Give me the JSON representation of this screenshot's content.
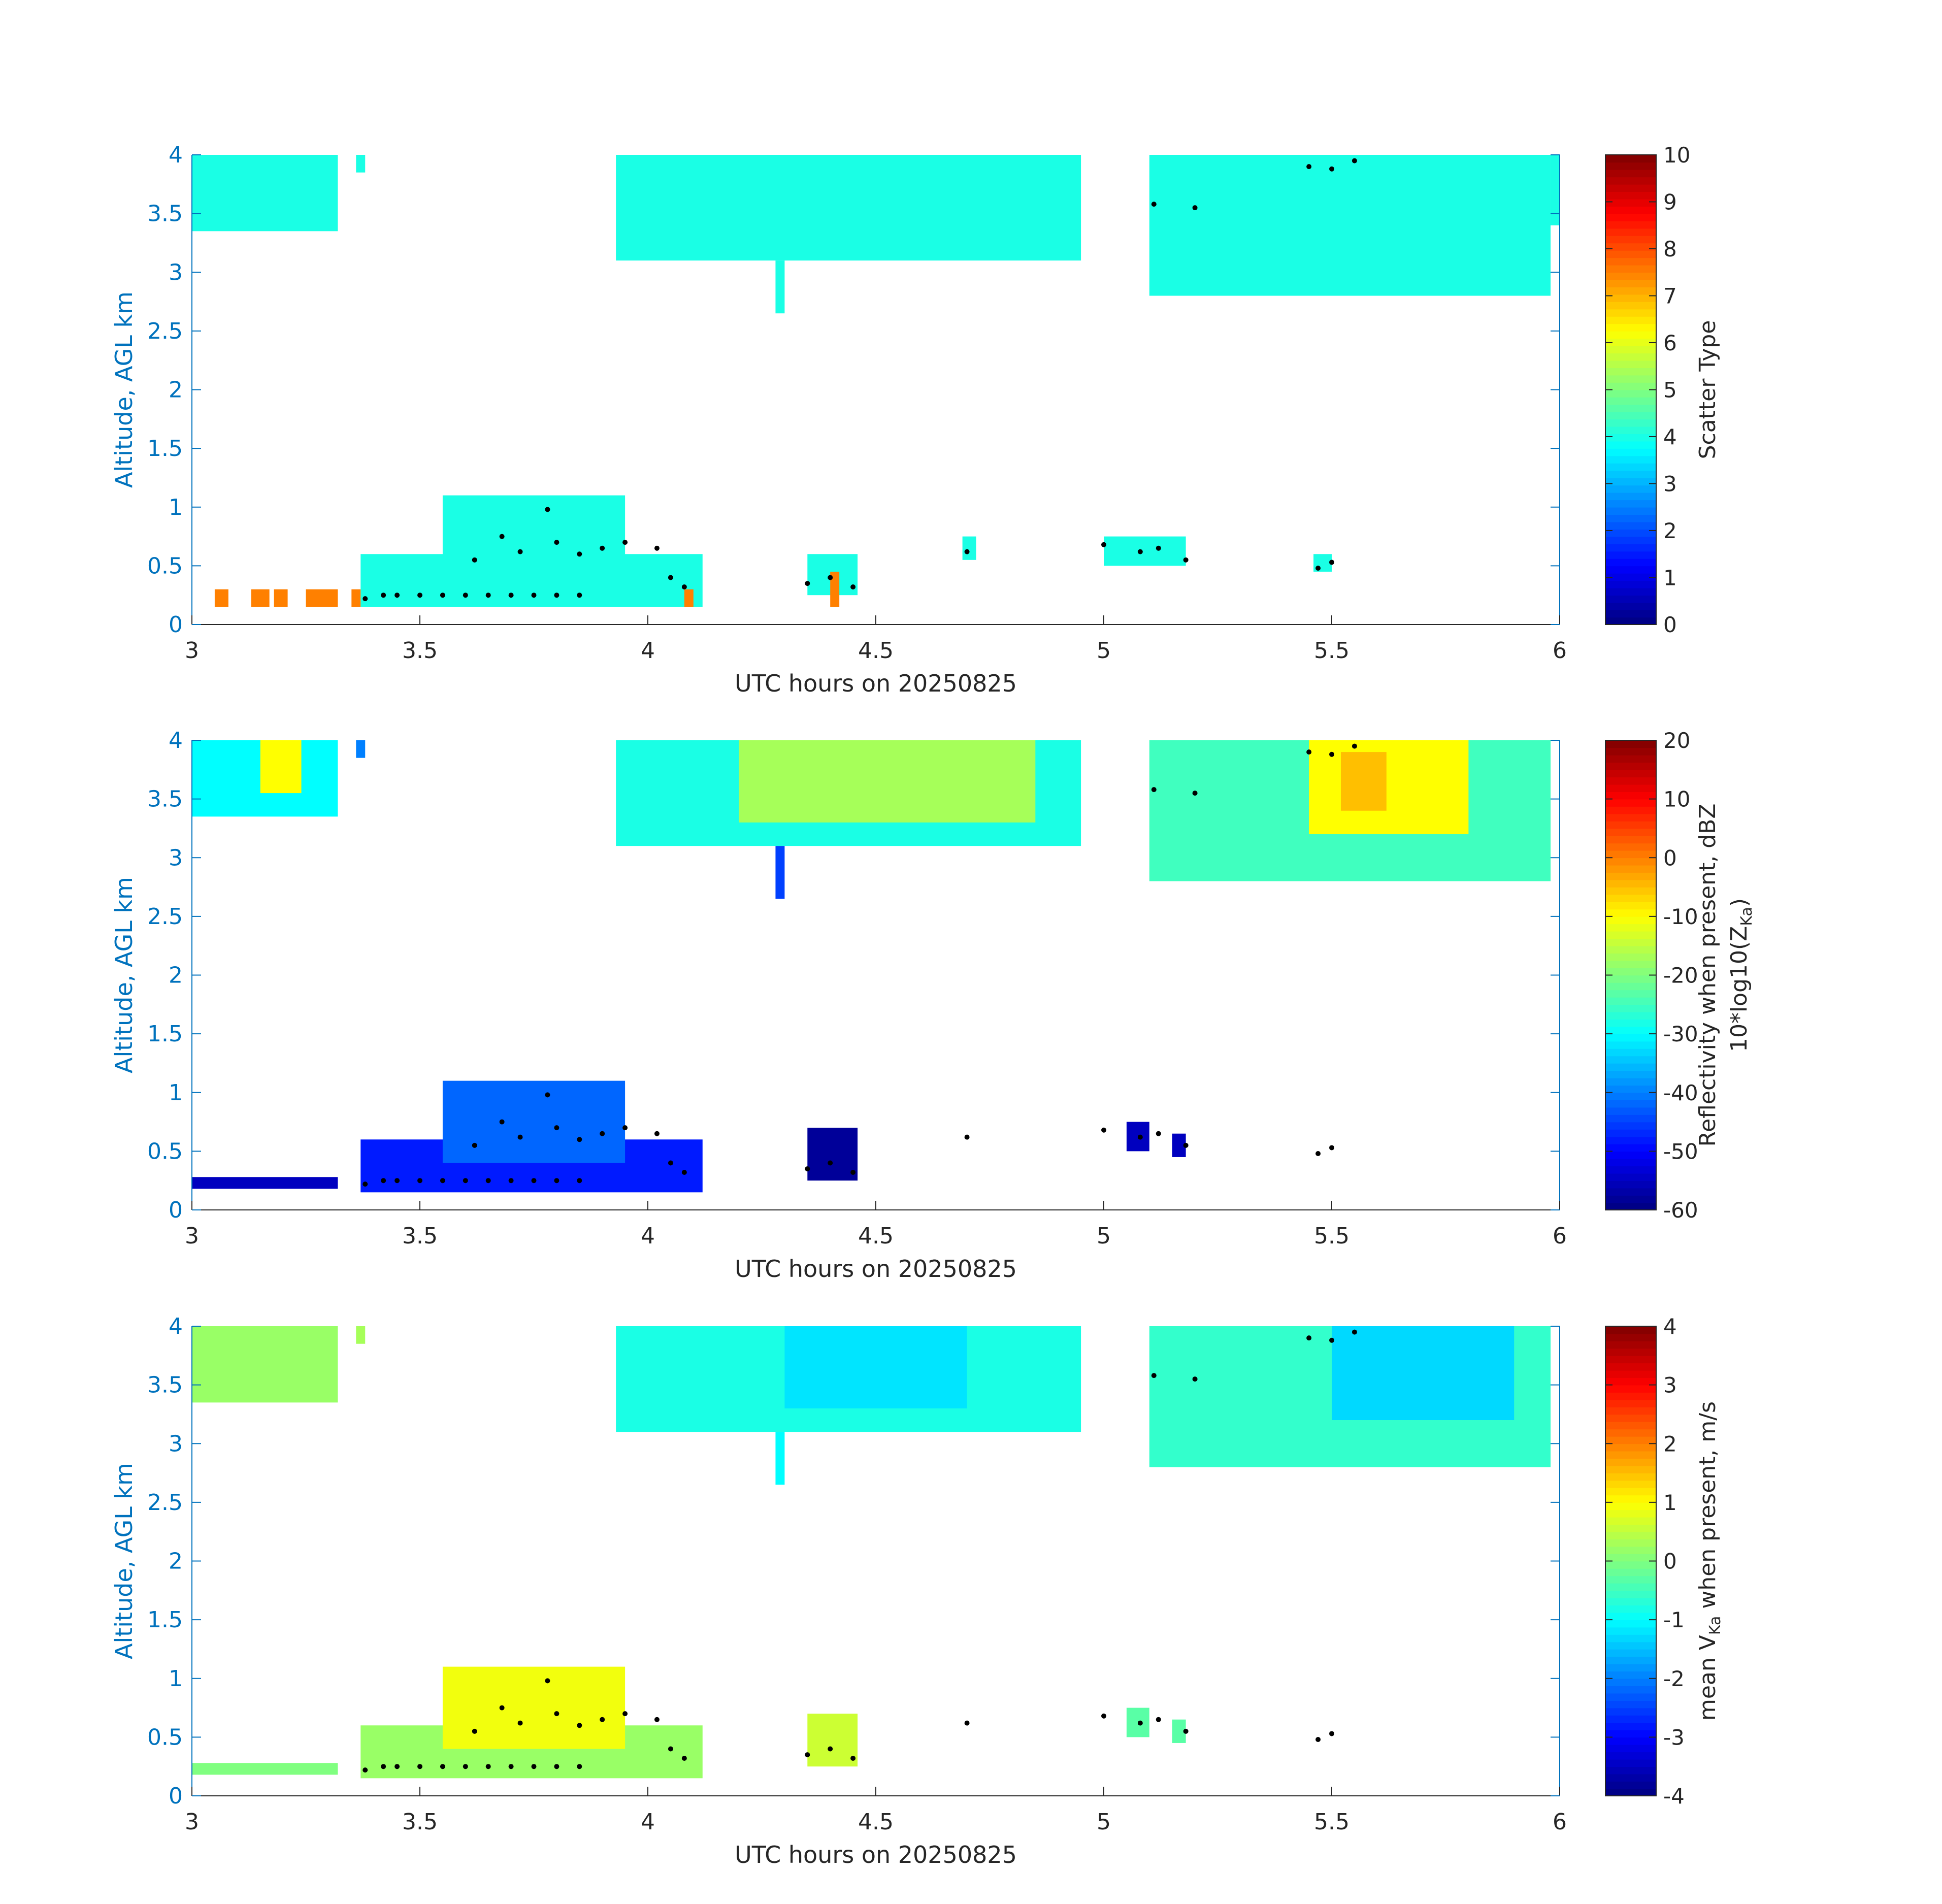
{
  "chart_data": [
    {
      "type": "heatmap",
      "xlabel": "UTC hours on 20250825",
      "ylabel": "Altitude, AGL km",
      "xlim": [
        3,
        6
      ],
      "ylim": [
        0,
        4
      ],
      "xticks": [
        "3",
        "3.5",
        "4",
        "4.5",
        "5",
        "5.5",
        "6"
      ],
      "yticks": [
        "0",
        "0.5",
        "1",
        "1.5",
        "2",
        "2.5",
        "3",
        "3.5",
        "4"
      ],
      "colorbar": {
        "label_lines": [
          "Scatter Type"
        ],
        "range": [
          0,
          10
        ],
        "ticks": [
          "0",
          "1",
          "2",
          "3",
          "4",
          "5",
          "6",
          "7",
          "8",
          "9",
          "10"
        ]
      },
      "regions": [
        {
          "x": [
            3.0,
            3.32
          ],
          "y": [
            3.35,
            4.0
          ],
          "value": 4
        },
        {
          "x": [
            3.36,
            3.38
          ],
          "y": [
            3.85,
            4.0
          ],
          "value": 4
        },
        {
          "x": [
            3.93,
            4.95
          ],
          "y": [
            3.1,
            4.0
          ],
          "value": 4
        },
        {
          "x": [
            4.28,
            4.3
          ],
          "y": [
            2.65,
            3.1
          ],
          "value": 4
        },
        {
          "x": [
            5.1,
            5.98
          ],
          "y": [
            2.8,
            4.0
          ],
          "value": 4
        },
        {
          "x": [
            5.98,
            6.0
          ],
          "y": [
            3.4,
            4.0
          ],
          "value": 4
        },
        {
          "x": [
            3.37,
            4.12
          ],
          "y": [
            0.15,
            0.6
          ],
          "value": 4
        },
        {
          "x": [
            3.55,
            3.95
          ],
          "y": [
            0.4,
            1.1
          ],
          "value": 4
        },
        {
          "x": [
            4.35,
            4.46
          ],
          "y": [
            0.25,
            0.6
          ],
          "value": 4
        },
        {
          "x": [
            4.69,
            4.72
          ],
          "y": [
            0.55,
            0.75
          ],
          "value": 4
        },
        {
          "x": [
            5.0,
            5.18
          ],
          "y": [
            0.5,
            0.75
          ],
          "value": 4
        },
        {
          "x": [
            5.46,
            5.5
          ],
          "y": [
            0.45,
            0.6
          ],
          "value": 4
        },
        {
          "x": [
            3.05,
            3.08
          ],
          "y": [
            0.15,
            0.3
          ],
          "value": 7.5
        },
        {
          "x": [
            3.13,
            3.17
          ],
          "y": [
            0.15,
            0.3
          ],
          "value": 7.5
        },
        {
          "x": [
            3.18,
            3.21
          ],
          "y": [
            0.15,
            0.3
          ],
          "value": 7.5
        },
        {
          "x": [
            3.25,
            3.32
          ],
          "y": [
            0.15,
            0.3
          ],
          "value": 7.5
        },
        {
          "x": [
            3.35,
            3.37
          ],
          "y": [
            0.15,
            0.3
          ],
          "value": 7.5
        },
        {
          "x": [
            4.08,
            4.1
          ],
          "y": [
            0.15,
            0.3
          ],
          "value": 7.5
        },
        {
          "x": [
            4.4,
            4.42
          ],
          "y": [
            0.15,
            0.45
          ],
          "value": 7.5
        }
      ],
      "markers": [
        [
          3.38,
          0.22
        ],
        [
          3.42,
          0.25
        ],
        [
          3.45,
          0.25
        ],
        [
          3.5,
          0.25
        ],
        [
          3.55,
          0.25
        ],
        [
          3.6,
          0.25
        ],
        [
          3.65,
          0.25
        ],
        [
          3.7,
          0.25
        ],
        [
          3.75,
          0.25
        ],
        [
          3.8,
          0.25
        ],
        [
          3.85,
          0.25
        ],
        [
          3.62,
          0.55
        ],
        [
          3.68,
          0.75
        ],
        [
          3.72,
          0.62
        ],
        [
          3.78,
          0.98
        ],
        [
          3.8,
          0.7
        ],
        [
          3.85,
          0.6
        ],
        [
          3.9,
          0.65
        ],
        [
          3.95,
          0.7
        ],
        [
          4.02,
          0.65
        ],
        [
          4.05,
          0.4
        ],
        [
          4.08,
          0.32
        ],
        [
          4.35,
          0.35
        ],
        [
          4.4,
          0.4
        ],
        [
          4.45,
          0.32
        ],
        [
          4.7,
          0.62
        ],
        [
          5.0,
          0.68
        ],
        [
          5.08,
          0.62
        ],
        [
          5.12,
          0.65
        ],
        [
          5.18,
          0.55
        ],
        [
          5.47,
          0.48
        ],
        [
          5.5,
          0.53
        ],
        [
          5.45,
          3.9
        ],
        [
          5.5,
          3.88
        ],
        [
          5.55,
          3.95
        ],
        [
          5.11,
          3.58
        ],
        [
          5.2,
          3.55
        ]
      ]
    },
    {
      "type": "heatmap",
      "xlabel": "UTC hours on 20250825",
      "ylabel": "Altitude, AGL km",
      "xlim": [
        3,
        6
      ],
      "ylim": [
        0,
        4
      ],
      "xticks": [
        "3",
        "3.5",
        "4",
        "4.5",
        "5",
        "5.5",
        "6"
      ],
      "yticks": [
        "0",
        "0.5",
        "1",
        "1.5",
        "2",
        "2.5",
        "3",
        "3.5",
        "4"
      ],
      "colorbar": {
        "label_lines": [
          "Reflectivity when present, dBZ",
          "10*log10(Z",
          "Ka",
          ")"
        ],
        "range": [
          -60,
          20
        ],
        "ticks": [
          "-60",
          "-50",
          "-40",
          "-30",
          "-20",
          "-10",
          "0",
          "10",
          "20"
        ]
      },
      "regions": [
        {
          "x": [
            3.0,
            3.32
          ],
          "y": [
            3.35,
            4.0
          ],
          "value": -30
        },
        {
          "x": [
            3.15,
            3.24
          ],
          "y": [
            3.55,
            4.0
          ],
          "value": -10
        },
        {
          "x": [
            3.36,
            3.38
          ],
          "y": [
            3.85,
            4.0
          ],
          "value": -40
        },
        {
          "x": [
            3.93,
            4.95
          ],
          "y": [
            3.1,
            4.0
          ],
          "value": -28
        },
        {
          "x": [
            4.2,
            4.85
          ],
          "y": [
            3.3,
            4.0
          ],
          "value": -17
        },
        {
          "x": [
            4.28,
            4.3
          ],
          "y": [
            2.65,
            3.1
          ],
          "value": -45
        },
        {
          "x": [
            5.1,
            5.98
          ],
          "y": [
            2.8,
            4.0
          ],
          "value": -25
        },
        {
          "x": [
            5.45,
            5.8
          ],
          "y": [
            3.2,
            4.0
          ],
          "value": -10
        },
        {
          "x": [
            5.52,
            5.62
          ],
          "y": [
            3.4,
            3.9
          ],
          "value": -5
        },
        {
          "x": [
            3.37,
            4.12
          ],
          "y": [
            0.15,
            0.6
          ],
          "value": -48
        },
        {
          "x": [
            3.55,
            3.95
          ],
          "y": [
            0.4,
            1.1
          ],
          "value": -42
        },
        {
          "x": [
            4.35,
            4.46
          ],
          "y": [
            0.25,
            0.7
          ],
          "value": -58
        },
        {
          "x": [
            5.05,
            5.1
          ],
          "y": [
            0.5,
            0.75
          ],
          "value": -55
        },
        {
          "x": [
            5.15,
            5.18
          ],
          "y": [
            0.45,
            0.65
          ],
          "value": -55
        },
        {
          "x": [
            3.0,
            3.32
          ],
          "y": [
            0.18,
            0.28
          ],
          "value": -55
        }
      ],
      "markers": [
        [
          3.38,
          0.22
        ],
        [
          3.42,
          0.25
        ],
        [
          3.45,
          0.25
        ],
        [
          3.5,
          0.25
        ],
        [
          3.55,
          0.25
        ],
        [
          3.6,
          0.25
        ],
        [
          3.65,
          0.25
        ],
        [
          3.7,
          0.25
        ],
        [
          3.75,
          0.25
        ],
        [
          3.8,
          0.25
        ],
        [
          3.85,
          0.25
        ],
        [
          3.62,
          0.55
        ],
        [
          3.68,
          0.75
        ],
        [
          3.72,
          0.62
        ],
        [
          3.78,
          0.98
        ],
        [
          3.8,
          0.7
        ],
        [
          3.85,
          0.6
        ],
        [
          3.9,
          0.65
        ],
        [
          3.95,
          0.7
        ],
        [
          4.02,
          0.65
        ],
        [
          4.05,
          0.4
        ],
        [
          4.08,
          0.32
        ],
        [
          4.35,
          0.35
        ],
        [
          4.4,
          0.4
        ],
        [
          4.45,
          0.32
        ],
        [
          4.7,
          0.62
        ],
        [
          5.0,
          0.68
        ],
        [
          5.08,
          0.62
        ],
        [
          5.12,
          0.65
        ],
        [
          5.18,
          0.55
        ],
        [
          5.47,
          0.48
        ],
        [
          5.5,
          0.53
        ],
        [
          5.45,
          3.9
        ],
        [
          5.5,
          3.88
        ],
        [
          5.55,
          3.95
        ],
        [
          5.11,
          3.58
        ],
        [
          5.2,
          3.55
        ]
      ]
    },
    {
      "type": "heatmap",
      "xlabel": "UTC hours on 20250825",
      "ylabel": "Altitude, AGL km",
      "xlim": [
        3,
        6
      ],
      "ylim": [
        0,
        4
      ],
      "xticks": [
        "3",
        "3.5",
        "4",
        "4.5",
        "5",
        "5.5",
        "6"
      ],
      "yticks": [
        "0",
        "0.5",
        "1",
        "1.5",
        "2",
        "2.5",
        "3",
        "3.5",
        "4"
      ],
      "colorbar": {
        "label_lines": [
          "mean V",
          "Ka",
          " when present, m/s"
        ],
        "range": [
          -4,
          4
        ],
        "ticks": [
          "-4",
          "-3",
          "-2",
          "-1",
          "0",
          "1",
          "2",
          "3",
          "4"
        ]
      },
      "regions": [
        {
          "x": [
            3.0,
            3.32
          ],
          "y": [
            3.35,
            4.0
          ],
          "value": 0.2
        },
        {
          "x": [
            3.36,
            3.38
          ],
          "y": [
            3.85,
            4.0
          ],
          "value": 0.3
        },
        {
          "x": [
            3.93,
            4.95
          ],
          "y": [
            3.1,
            4.0
          ],
          "value": -0.8
        },
        {
          "x": [
            4.3,
            4.7
          ],
          "y": [
            3.3,
            4.0
          ],
          "value": -1.2
        },
        {
          "x": [
            4.28,
            4.3
          ],
          "y": [
            2.65,
            3.1
          ],
          "value": -1
        },
        {
          "x": [
            5.1,
            5.98
          ],
          "y": [
            2.8,
            4.0
          ],
          "value": -0.6
        },
        {
          "x": [
            5.5,
            5.9
          ],
          "y": [
            3.2,
            4.0
          ],
          "value": -1.3
        },
        {
          "x": [
            3.0,
            3.32
          ],
          "y": [
            0.18,
            0.28
          ],
          "value": 0
        },
        {
          "x": [
            3.37,
            4.12
          ],
          "y": [
            0.15,
            0.6
          ],
          "value": 0.2
        },
        {
          "x": [
            3.55,
            3.95
          ],
          "y": [
            0.4,
            1.1
          ],
          "value": 0.9
        },
        {
          "x": [
            4.35,
            4.46
          ],
          "y": [
            0.25,
            0.7
          ],
          "value": 0.6
        },
        {
          "x": [
            5.05,
            5.1
          ],
          "y": [
            0.5,
            0.75
          ],
          "value": -0.3
        },
        {
          "x": [
            5.15,
            5.18
          ],
          "y": [
            0.45,
            0.65
          ],
          "value": -0.3
        }
      ],
      "markers": [
        [
          3.38,
          0.22
        ],
        [
          3.42,
          0.25
        ],
        [
          3.45,
          0.25
        ],
        [
          3.5,
          0.25
        ],
        [
          3.55,
          0.25
        ],
        [
          3.6,
          0.25
        ],
        [
          3.65,
          0.25
        ],
        [
          3.7,
          0.25
        ],
        [
          3.75,
          0.25
        ],
        [
          3.8,
          0.25
        ],
        [
          3.85,
          0.25
        ],
        [
          3.62,
          0.55
        ],
        [
          3.68,
          0.75
        ],
        [
          3.72,
          0.62
        ],
        [
          3.78,
          0.98
        ],
        [
          3.8,
          0.7
        ],
        [
          3.85,
          0.6
        ],
        [
          3.9,
          0.65
        ],
        [
          3.95,
          0.7
        ],
        [
          4.02,
          0.65
        ],
        [
          4.05,
          0.4
        ],
        [
          4.08,
          0.32
        ],
        [
          4.35,
          0.35
        ],
        [
          4.4,
          0.4
        ],
        [
          4.45,
          0.32
        ],
        [
          4.7,
          0.62
        ],
        [
          5.0,
          0.68
        ],
        [
          5.08,
          0.62
        ],
        [
          5.12,
          0.65
        ],
        [
          5.18,
          0.55
        ],
        [
          5.47,
          0.48
        ],
        [
          5.5,
          0.53
        ],
        [
          5.45,
          3.9
        ],
        [
          5.5,
          3.88
        ],
        [
          5.55,
          3.95
        ],
        [
          5.11,
          3.58
        ],
        [
          5.2,
          3.55
        ]
      ]
    }
  ],
  "colors": {
    "axis_label": "#0072BD",
    "tick_text": "#262626",
    "colormap": "jet"
  }
}
